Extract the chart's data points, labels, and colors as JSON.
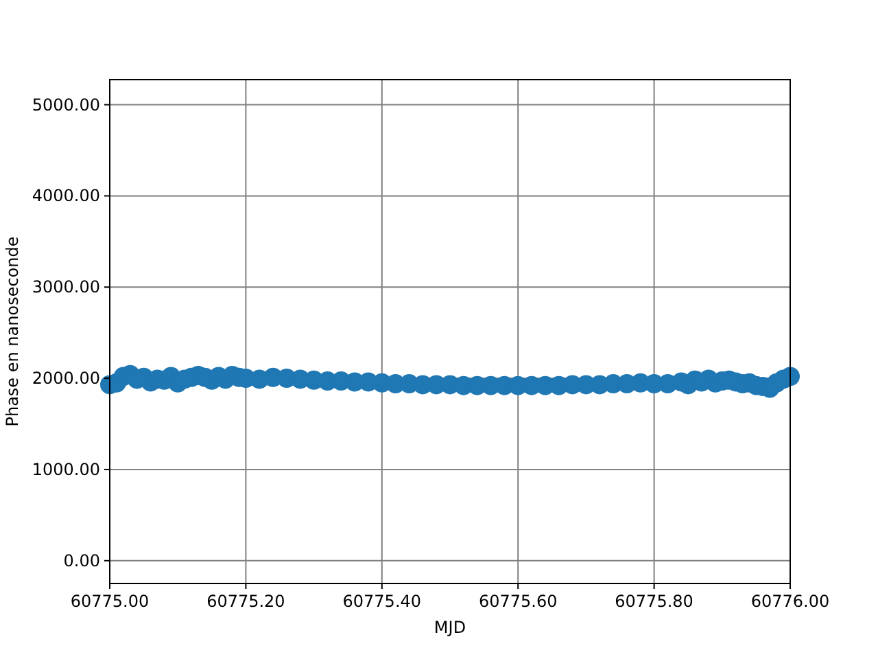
{
  "chart_data": {
    "type": "scatter",
    "xlabel": "MJD",
    "ylabel": "Phase en nanoseconde",
    "color": "#1f77b4",
    "marker": "circle",
    "grid": true,
    "x": [
      60775.0,
      60775.01,
      60775.02,
      60775.03,
      60775.04,
      60775.05,
      60775.06,
      60775.07,
      60775.08,
      60775.09,
      60775.1,
      60775.11,
      60775.12,
      60775.13,
      60775.14,
      60775.15,
      60775.16,
      60775.17,
      60775.18,
      60775.19,
      60775.2,
      60775.22,
      60775.24,
      60775.26,
      60775.28,
      60775.3,
      60775.32,
      60775.34,
      60775.36,
      60775.38,
      60775.4,
      60775.42,
      60775.44,
      60775.46,
      60775.48,
      60775.5,
      60775.52,
      60775.54,
      60775.56,
      60775.58,
      60775.6,
      60775.62,
      60775.64,
      60775.66,
      60775.68,
      60775.7,
      60775.72,
      60775.74,
      60775.76,
      60775.78,
      60775.8,
      60775.82,
      60775.84,
      60775.85,
      60775.86,
      60775.87,
      60775.88,
      60775.89,
      60775.9,
      60775.91,
      60775.92,
      60775.93,
      60775.94,
      60775.95,
      60775.96,
      60775.97,
      60775.98,
      60775.99,
      60776.0
    ],
    "values": [
      1930,
      1950,
      2020,
      2040,
      1990,
      2010,
      1960,
      1990,
      1980,
      2020,
      1950,
      1990,
      2010,
      2030,
      2010,
      1980,
      2020,
      1990,
      2030,
      2010,
      2000,
      1990,
      2010,
      2000,
      1990,
      1980,
      1970,
      1970,
      1960,
      1960,
      1950,
      1940,
      1940,
      1930,
      1930,
      1930,
      1920,
      1920,
      1920,
      1920,
      1920,
      1920,
      1920,
      1920,
      1930,
      1930,
      1930,
      1940,
      1940,
      1950,
      1940,
      1940,
      1960,
      1930,
      1980,
      1960,
      1990,
      1950,
      1970,
      1980,
      1960,
      1940,
      1950,
      1920,
      1910,
      1890,
      1950,
      1990,
      2020
    ],
    "xlim": [
      60775,
      60776
    ],
    "xticks": [
      {
        "value": 60775,
        "label": "60775.00"
      },
      {
        "value": 60775.2,
        "label": "60775.20"
      },
      {
        "value": 60775.4,
        "label": "60775.40"
      },
      {
        "value": 60775.6,
        "label": "60775.60"
      },
      {
        "value": 60775.8,
        "label": "60775.80"
      },
      {
        "value": 60776,
        "label": "60776.00"
      }
    ],
    "ylim": [
      -250,
      5275
    ],
    "yticks": [
      {
        "value": 0,
        "label": "0.00"
      },
      {
        "value": 1000,
        "label": "1000.00"
      },
      {
        "value": 2000,
        "label": "2000.00"
      },
      {
        "value": 3000,
        "label": "3000.00"
      },
      {
        "value": 4000,
        "label": "4000.00"
      },
      {
        "value": 5000,
        "label": "5000.00"
      }
    ]
  }
}
